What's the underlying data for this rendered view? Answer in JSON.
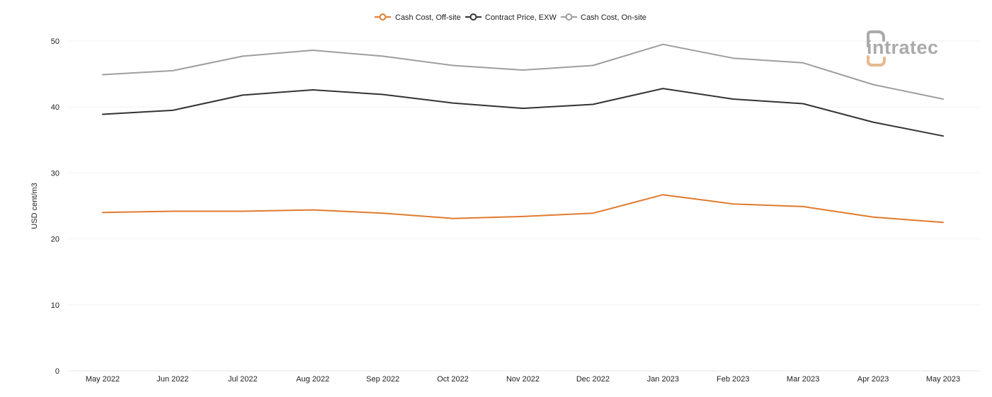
{
  "chart_data": {
    "type": "line",
    "ylabel": "USD cent/m3",
    "xlabel": "",
    "ylim": [
      0,
      50
    ],
    "yticks": [
      0,
      10,
      20,
      30,
      40,
      50
    ],
    "grid": "horizontal",
    "legend_position": "top-center",
    "categories": [
      "May 2022",
      "Jun 2022",
      "Jul 2022",
      "Aug 2022",
      "Sep 2022",
      "Oct 2022",
      "Nov 2022",
      "Dec 2022",
      "Jan 2023",
      "Feb 2023",
      "Mar 2023",
      "Apr 2023",
      "May 2023"
    ],
    "series": [
      {
        "name": "Cash Cost, Off-site",
        "color": "#e07b2e",
        "values": [
          24.0,
          24.2,
          24.2,
          24.4,
          23.9,
          23.1,
          23.4,
          23.9,
          26.7,
          25.3,
          24.9,
          23.3,
          22.5
        ]
      },
      {
        "name": "Contract Price, EXW",
        "color": "#333333",
        "values": [
          38.9,
          39.5,
          41.8,
          42.6,
          41.9,
          40.6,
          39.8,
          40.4,
          42.8,
          41.2,
          40.5,
          37.7,
          35.6
        ]
      },
      {
        "name": "Cash Cost, On-site",
        "color": "#9e9e9e",
        "values": [
          44.9,
          45.5,
          47.7,
          48.6,
          47.7,
          46.3,
          45.6,
          46.3,
          49.5,
          47.4,
          46.7,
          43.4,
          41.2
        ]
      }
    ]
  },
  "logo": {
    "text": "intratec",
    "color": "#aaaaaa",
    "accent": "#e6b98f"
  }
}
